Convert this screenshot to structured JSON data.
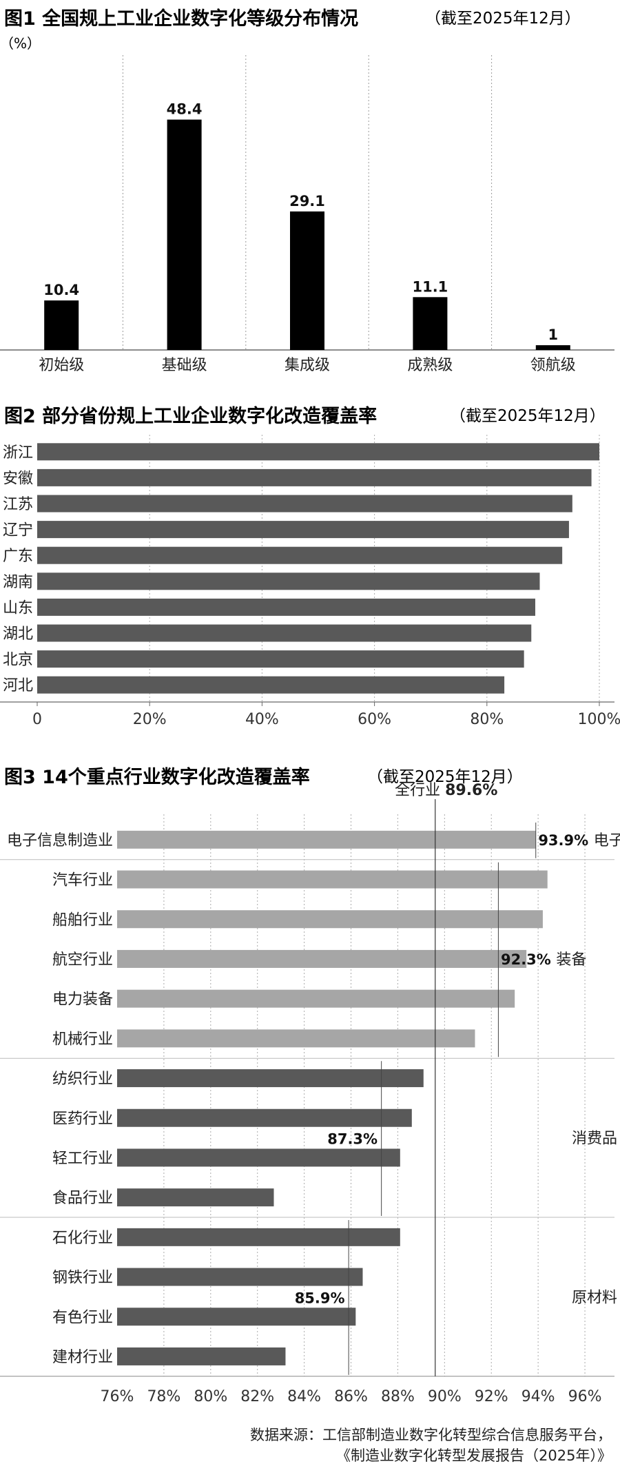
{
  "chart_data": [
    {
      "type": "bar",
      "title": "图1 全国规上工业企业数字化等级分布情况",
      "subtitle": "（截至2025年12月）",
      "unit": "（%）",
      "categories": [
        "初始级",
        "基础级",
        "集成级",
        "成熟级",
        "领航级"
      ],
      "values": [
        10.4,
        48.4,
        29.1,
        11.1,
        1
      ],
      "value_labels": [
        "10.4",
        "48.4",
        "29.1",
        "11.1",
        "1"
      ],
      "ylim": [
        0,
        55
      ],
      "grid": "vertical dotted separators",
      "colors": {
        "bar": "#000000"
      }
    },
    {
      "type": "bar",
      "orientation": "horizontal",
      "title": "图2 部分省份规上工业企业数字化改造覆盖率",
      "subtitle": "（截至2025年12月）",
      "categories": [
        "浙江",
        "安徽",
        "江苏",
        "辽宁",
        "广东",
        "湖南",
        "山东",
        "湖北",
        "北京",
        "河北"
      ],
      "values": [
        100,
        98.6,
        95.2,
        94.6,
        93.4,
        89.4,
        88.6,
        87.9,
        86.6,
        83.1
      ],
      "xlim": [
        0,
        100
      ],
      "x_ticks": [
        "0",
        "20%",
        "40%",
        "60%",
        "80%",
        "100%"
      ],
      "x_tick_values": [
        0,
        20,
        40,
        60,
        80,
        100
      ],
      "grid": "vertical dotted",
      "colors": {
        "bar": "#595959"
      }
    },
    {
      "type": "bar",
      "orientation": "horizontal",
      "title": "图3 14个重点行业数字化改造覆盖率",
      "subtitle": "（截至2025年12月）",
      "overall": {
        "label_prefix": "全行业",
        "label_value": "89.6%",
        "value": 89.6
      },
      "categories": [
        "电子信息制造业",
        "汽车行业",
        "船舶行业",
        "航空行业",
        "电力装备",
        "机械行业",
        "纺织行业",
        "医药行业",
        "轻工行业",
        "食品行业",
        "石化行业",
        "钢铁行业",
        "有色行业",
        "建材行业"
      ],
      "values": [
        93.9,
        94.4,
        94.2,
        93.5,
        93.0,
        91.3,
        89.1,
        88.6,
        88.1,
        82.7,
        88.1,
        86.5,
        86.2,
        83.2
      ],
      "groups": [
        {
          "name": "电子",
          "avg_label": "93.9%",
          "avg": 93.9,
          "members": [
            0
          ]
        },
        {
          "name": "装备",
          "avg_label": "92.3%",
          "avg": 92.3,
          "members": [
            1,
            2,
            3,
            4,
            5
          ]
        },
        {
          "name": "消费品",
          "avg_label": "87.3%",
          "avg": 87.3,
          "members": [
            6,
            7,
            8,
            9
          ]
        },
        {
          "name": "原材料",
          "avg_label": "85.9%",
          "avg": 85.9,
          "members": [
            10,
            11,
            12,
            13
          ]
        }
      ],
      "xlim": [
        76,
        97
      ],
      "x_ticks": [
        "76%",
        "78%",
        "80%",
        "82%",
        "84%",
        "86%",
        "88%",
        "90%",
        "92%",
        "94%",
        "96%"
      ],
      "x_tick_values": [
        76,
        78,
        80,
        82,
        84,
        86,
        88,
        90,
        92,
        94,
        96
      ],
      "grid": "vertical dotted",
      "colors": {
        "light_bar": "#a6a6a6",
        "dark_bar": "#595959"
      }
    }
  ],
  "source": {
    "line1": "数据来源：工信部制造业数字化转型综合信息服务平台，",
    "line2": "《制造业数字化转型发展报告（2025年）》"
  }
}
